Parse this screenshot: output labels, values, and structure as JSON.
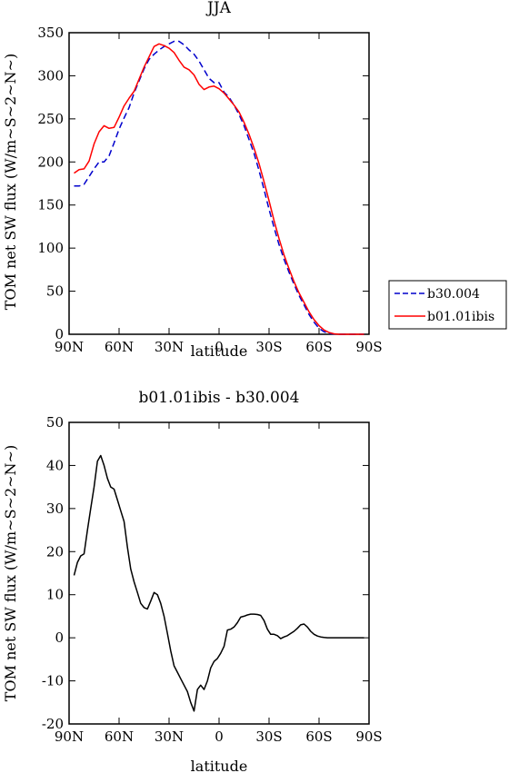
{
  "chart_data": [
    {
      "type": "line",
      "title": "JJA",
      "xlabel": "latitude",
      "ylabel": "TOM net SW flux (W/m~S~2~N~)",
      "x_ticks": [
        {
          "lat": 90,
          "label": "90N"
        },
        {
          "lat": 60,
          "label": "60N"
        },
        {
          "lat": 30,
          "label": "30N"
        },
        {
          "lat": 0,
          "label": "0"
        },
        {
          "lat": -30,
          "label": "30S"
        },
        {
          "lat": -60,
          "label": "60S"
        },
        {
          "lat": -90,
          "label": "90S"
        }
      ],
      "xlim": [
        90,
        -90
      ],
      "ylim": [
        0,
        350
      ],
      "y_ticks": [
        0,
        50,
        100,
        150,
        200,
        250,
        300,
        350
      ],
      "grid": false,
      "legend_placement": "right, outside plot",
      "series": [
        {
          "name": "b30.004",
          "color": "#0000cc",
          "style": "dashed",
          "x": [
            87,
            84,
            81,
            78,
            75,
            72,
            69,
            66,
            63,
            60,
            57,
            54,
            51,
            48,
            45,
            42,
            39,
            36,
            33,
            30,
            27,
            24,
            21,
            18,
            15,
            12,
            9,
            6,
            3,
            0,
            -3,
            -6,
            -9,
            -12,
            -15,
            -18,
            -21,
            -24,
            -27,
            -30,
            -33,
            -36,
            -39,
            -42,
            -45,
            -48,
            -51,
            -54,
            -57,
            -60,
            -63,
            -66,
            -69,
            -72,
            -75,
            -78,
            -81,
            -84,
            -87
          ],
          "y": [
            172,
            172,
            174,
            183,
            192,
            200,
            200,
            207,
            222,
            238,
            251,
            263,
            280,
            294,
            308,
            319,
            325,
            330,
            334,
            337,
            340,
            340,
            336,
            330,
            325,
            317,
            307,
            297,
            292,
            292,
            281,
            275,
            266,
            255,
            242,
            226,
            210,
            190,
            168,
            145,
            124,
            104,
            87,
            72,
            58,
            45,
            34,
            23,
            14,
            7,
            3,
            1,
            0.3,
            0,
            0,
            0,
            0,
            0,
            0
          ]
        },
        {
          "name": "b01.01ibis",
          "color": "#ff0000",
          "style": "solid",
          "x": [
            87,
            84,
            81,
            78,
            75,
            72,
            69,
            66,
            63,
            60,
            57,
            54,
            51,
            48,
            45,
            42,
            39,
            36,
            33,
            30,
            27,
            24,
            21,
            18,
            15,
            12,
            9,
            6,
            3,
            0,
            -3,
            -6,
            -9,
            -12,
            -15,
            -18,
            -21,
            -24,
            -27,
            -30,
            -33,
            -36,
            -39,
            -42,
            -45,
            -48,
            -51,
            -54,
            -57,
            -60,
            -63,
            -66,
            -69,
            -72,
            -75,
            -78,
            -81,
            -84,
            -87
          ],
          "y": [
            187,
            191,
            192,
            201,
            221,
            235,
            242,
            239,
            240,
            252,
            265,
            274,
            282,
            296,
            310,
            322,
            334,
            337,
            335,
            332,
            327,
            318,
            310,
            307,
            301,
            290,
            284,
            287,
            288,
            285,
            280,
            273,
            266,
            258,
            246,
            232,
            216,
            198,
            177,
            155,
            132,
            111,
            92,
            76,
            61,
            48,
            37,
            26,
            17,
            10,
            5,
            2,
            0.5,
            0,
            0,
            0,
            0,
            0,
            0
          ]
        }
      ]
    },
    {
      "type": "line",
      "title": "b01.01ibis - b30.004",
      "xlabel": "latitude",
      "ylabel": "TOM net SW flux (W/m~S~2~N~)",
      "x_ticks": [
        {
          "lat": 90,
          "label": "90N"
        },
        {
          "lat": 60,
          "label": "60N"
        },
        {
          "lat": 30,
          "label": "30N"
        },
        {
          "lat": 0,
          "label": "0"
        },
        {
          "lat": -30,
          "label": "30S"
        },
        {
          "lat": -60,
          "label": "60S"
        },
        {
          "lat": -90,
          "label": "90S"
        }
      ],
      "xlim": [
        90,
        -90
      ],
      "ylim": [
        -20,
        50
      ],
      "y_ticks": [
        -20,
        -10,
        0,
        10,
        20,
        30,
        40,
        50
      ],
      "grid": false,
      "series": [
        {
          "color": "#000000",
          "style": "solid",
          "x": [
            87,
            85,
            83,
            81,
            79,
            77,
            75,
            73,
            71,
            69,
            67,
            65,
            63,
            61,
            59,
            57,
            55,
            53,
            51,
            49,
            47,
            45,
            43,
            41,
            39,
            37,
            35,
            33,
            31,
            29,
            27,
            25,
            23,
            21,
            19,
            17,
            15,
            13,
            11,
            9,
            7,
            5,
            3,
            1,
            -1,
            -3,
            -5,
            -7,
            -9,
            -11,
            -13,
            -15,
            -17,
            -19,
            -21,
            -23,
            -25,
            -27,
            -29,
            -31,
            -33,
            -35,
            -37,
            -39,
            -41,
            -43,
            -45,
            -47,
            -49,
            -51,
            -53,
            -55,
            -57,
            -59,
            -61,
            -63,
            -65,
            -67,
            -69,
            -71,
            -73,
            -75,
            -77,
            -79,
            -81,
            -83,
            -85,
            -87
          ],
          "y": [
            14.5,
            17.5,
            19,
            19.5,
            25,
            30,
            35,
            41,
            42.3,
            40,
            37,
            35,
            34.5,
            32,
            29.5,
            27,
            21,
            16,
            13,
            10.5,
            8,
            7,
            6.7,
            8.5,
            10.5,
            10,
            8,
            5,
            1,
            -3,
            -6.5,
            -8,
            -9.5,
            -11,
            -12.5,
            -15,
            -17,
            -12,
            -11,
            -12,
            -10,
            -7,
            -5.5,
            -4.8,
            -3.6,
            -2,
            1.8,
            2,
            2.5,
            3.5,
            4.8,
            5,
            5.3,
            5.5,
            5.5,
            5.4,
            5.2,
            4,
            2,
            0.8,
            0.8,
            0.5,
            -0.2,
            0.2,
            0.5,
            1,
            1.5,
            2.2,
            3,
            3.2,
            2.5,
            1.5,
            0.8,
            0.4,
            0.2,
            0.1,
            0,
            0,
            0,
            0,
            0,
            0,
            0,
            0,
            0,
            0,
            0,
            0
          ]
        }
      ]
    }
  ]
}
